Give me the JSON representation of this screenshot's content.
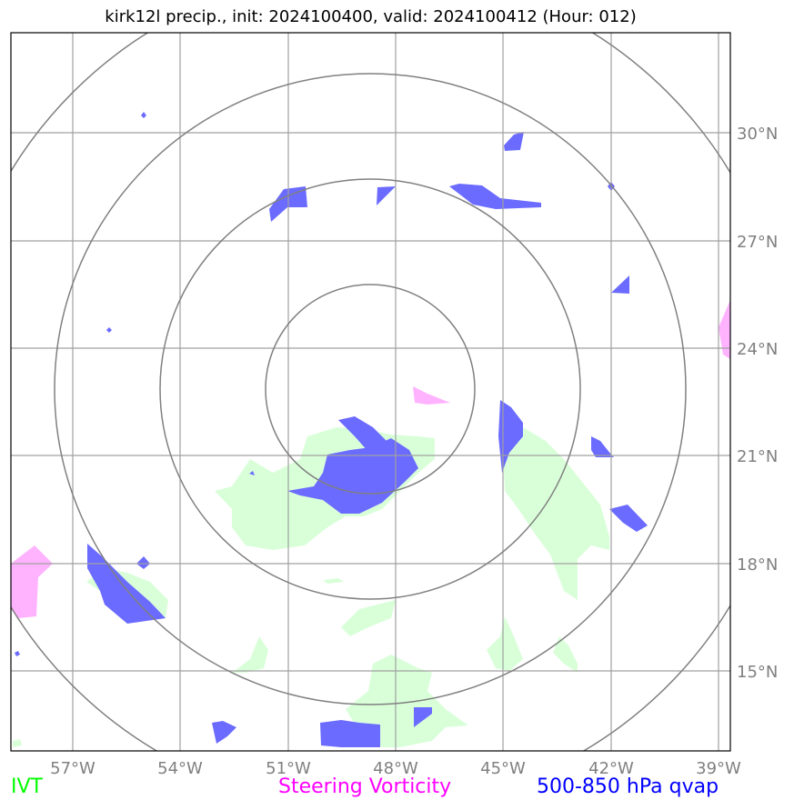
{
  "title": "kirk12l precip., init: 2024100400, valid: 2024100412 (Hour: 012)",
  "map": {
    "lon_ticks": [
      "57°W",
      "54°W",
      "51°W",
      "48°W",
      "45°W",
      "42°W",
      "39°W"
    ],
    "lat_ticks": [
      "30°N",
      "27°N",
      "24°N",
      "21°N",
      "18°N",
      "15°N"
    ],
    "range_rings": 4,
    "gridline_color": "#a0a0a0",
    "ring_color": "#808080"
  },
  "legend": {
    "ivt": "IVT",
    "steering": "Steering Vorticity",
    "qvap": "500-850 hPa qvap"
  },
  "colors": {
    "ivt": "#00ff00",
    "steering": "#ff00ff",
    "qvap": "#0000ff",
    "ivt_fill": "#d9ffd9",
    "steering_fill": "#ffb3ff",
    "qvap_fill": "#6666ff"
  }
}
